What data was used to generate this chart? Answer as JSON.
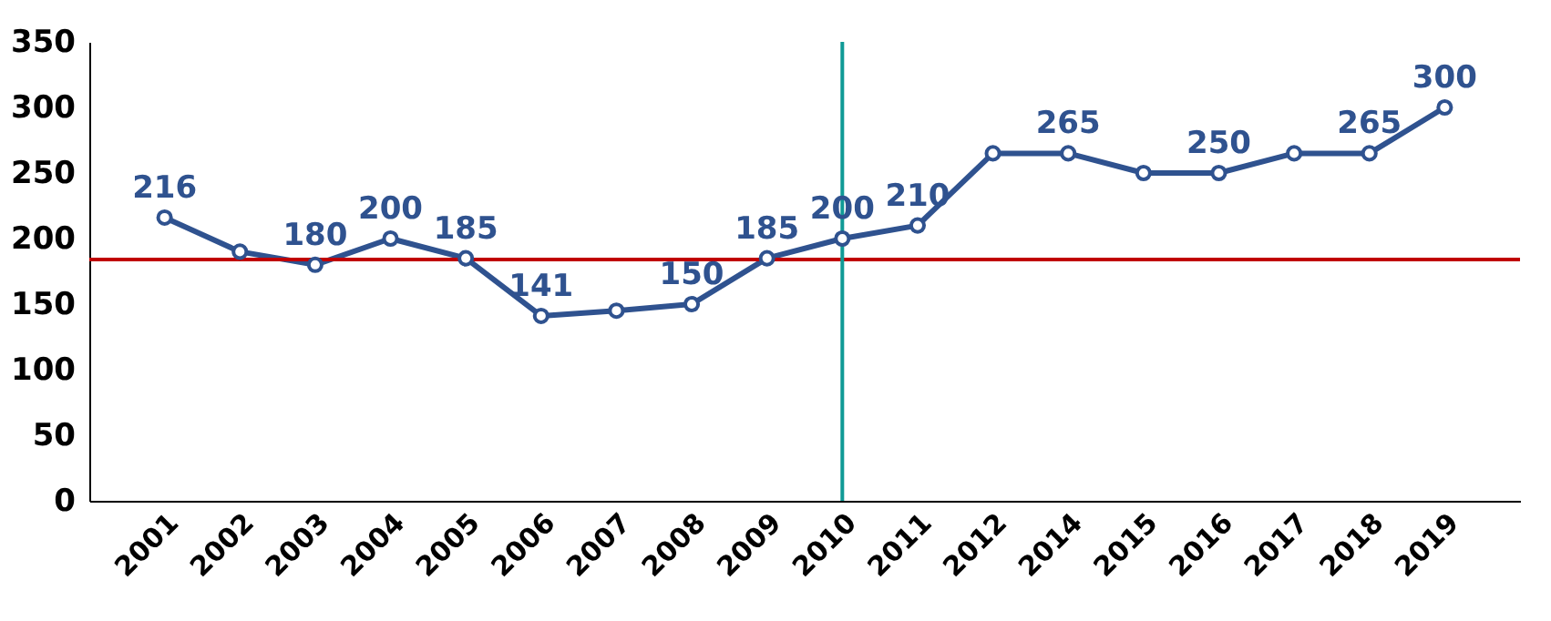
{
  "chart_data": {
    "type": "line",
    "categories": [
      "2001",
      "2002",
      "2003",
      "2004",
      "2005",
      "2006",
      "2007",
      "2008",
      "2009",
      "2010",
      "2011",
      "2012",
      "2014",
      "2015",
      "2016",
      "2017",
      "2018",
      "2019"
    ],
    "series": [
      {
        "color": "#2f528f",
        "values": [
          216,
          190,
          180,
          200,
          185,
          141,
          145,
          150,
          185,
          200,
          210,
          265,
          265,
          250,
          250,
          265,
          265,
          300
        ],
        "value_labels": [
          "216",
          null,
          "180",
          "200",
          "185",
          "141",
          null,
          "150",
          "185",
          "200",
          "210",
          null,
          "265",
          null,
          "250",
          null,
          "265",
          "300"
        ]
      }
    ],
    "ylim": [
      0,
      350
    ],
    "yticks": [
      0,
      50,
      100,
      150,
      200,
      250,
      300,
      350
    ],
    "grid": false,
    "marker": "circle",
    "ref_lines": [
      {
        "axis": "y",
        "value": 184,
        "color": "#c00000"
      },
      {
        "axis": "x",
        "value": "2010",
        "color": "#109a96"
      }
    ]
  }
}
